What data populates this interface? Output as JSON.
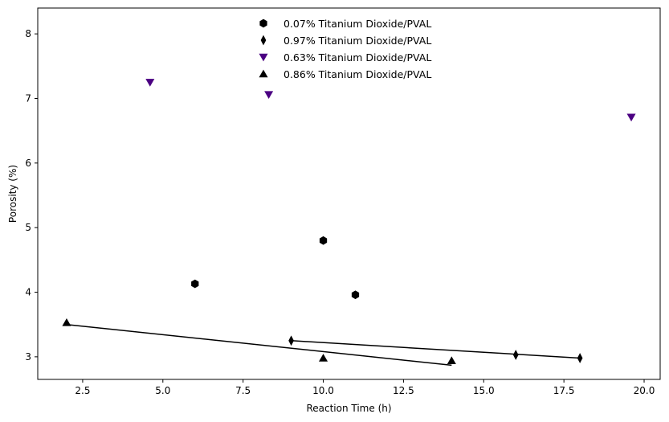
{
  "chart_data": {
    "type": "scatter",
    "xlabel": "Reaction Time (h)",
    "ylabel": "Porosity (%)",
    "xlim": [
      1.1,
      20.5
    ],
    "ylim": [
      2.65,
      8.4
    ],
    "xticks": [
      2.5,
      5.0,
      7.5,
      10.0,
      12.5,
      15.0,
      17.5,
      20.0
    ],
    "xtick_labels": [
      "2.5",
      "5.0",
      "7.5",
      "10.0",
      "12.5",
      "15.0",
      "17.5",
      "20.0"
    ],
    "yticks": [
      3,
      4,
      5,
      6,
      7,
      8
    ],
    "ytick_labels": [
      "3",
      "4",
      "5",
      "6",
      "7",
      "8"
    ],
    "grid": false,
    "legend_position": "top-center",
    "series": [
      {
        "name": "0.07% Titanium Dioxide/PVAL",
        "marker": "hexagon",
        "color": "#000000",
        "x": [
          6,
          10,
          11
        ],
        "y": [
          4.13,
          4.8,
          3.96
        ],
        "fit_line": null
      },
      {
        "name": "0.97% Titanium Dioxide/PVAL",
        "marker": "thin-diamond",
        "color": "#000000",
        "x": [
          9,
          16,
          18
        ],
        "y": [
          3.25,
          3.03,
          2.98
        ],
        "fit_line": {
          "x": [
            9,
            18
          ],
          "y": [
            3.25,
            2.98
          ]
        }
      },
      {
        "name": "0.63% Titanium Dioxide/PVAL",
        "marker": "triangle-down",
        "color": "#4b0082",
        "x": [
          4.6,
          8.3,
          19.6
        ],
        "y": [
          7.25,
          7.06,
          6.71
        ],
        "fit_line": null
      },
      {
        "name": "0.86% Titanium Dioxide/PVAL",
        "marker": "triangle-up",
        "color": "#000000",
        "x": [
          2,
          10,
          14
        ],
        "y": [
          3.53,
          2.98,
          2.94
        ],
        "fit_line": {
          "x": [
            2,
            14
          ],
          "y": [
            3.5,
            2.87
          ]
        }
      }
    ]
  }
}
